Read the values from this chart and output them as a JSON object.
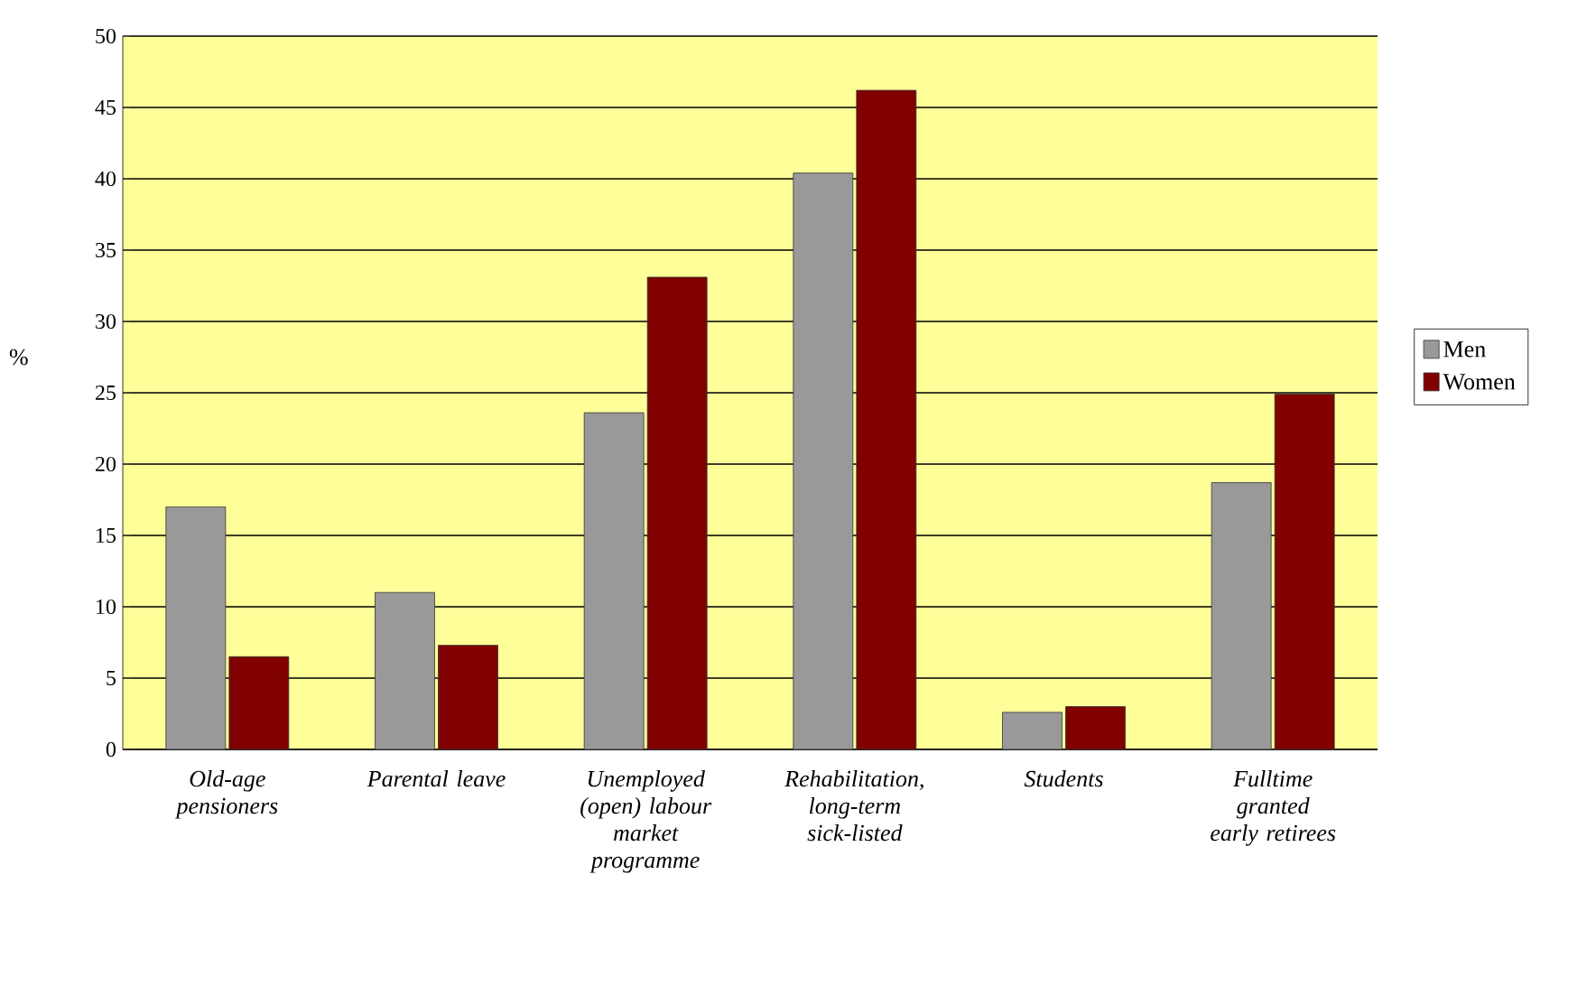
{
  "chart_data": {
    "type": "bar",
    "ylabel": "%",
    "categories": [
      "Old-age pensioners",
      "Parental leave",
      "Unemployed (open) labour market programme",
      "Rehabilitation, long-term sick-listed",
      "Students",
      "Fulltime granted early retirees"
    ],
    "series": [
      {
        "name": "Men",
        "color": "#999999",
        "values": [
          17.0,
          11.0,
          23.6,
          40.4,
          2.6,
          18.7
        ]
      },
      {
        "name": "Women",
        "color": "#800000",
        "values": [
          6.5,
          7.3,
          33.1,
          46.2,
          3.0,
          24.9
        ]
      }
    ],
    "ylim": [
      0,
      50
    ],
    "yticks": [
      0,
      5,
      10,
      15,
      20,
      25,
      30,
      35,
      40,
      45,
      50
    ],
    "grid": "y",
    "legend": "right"
  }
}
